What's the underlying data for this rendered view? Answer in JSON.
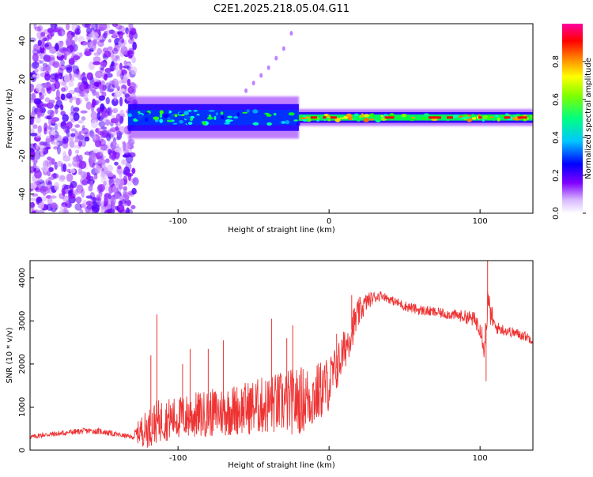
{
  "figure": {
    "title": "C2E1.2025.218.05.04.G11"
  },
  "chart_data": [
    {
      "type": "heatmap",
      "xlabel": "Height of straight line (km)",
      "ylabel": "Frequency (Hz)",
      "xlim": [
        -198,
        135
      ],
      "ylim": [
        -50,
        49
      ],
      "xticks": [
        -100,
        0,
        100
      ],
      "yticks": [
        -40,
        -20,
        0,
        20,
        40
      ],
      "colorbar": {
        "label": "Normalized spectral amplitude",
        "range": [
          0,
          1
        ],
        "ticks": [
          "0.0",
          "0.2",
          "0.4",
          "0.6",
          "0.8"
        ],
        "colormap": [
          "#ffffff",
          "#8000ff",
          "#0000ff",
          "#00ffff",
          "#00ff00",
          "#ffff00",
          "#ff0000",
          "#ff00ff"
        ]
      },
      "bands": [
        {
          "region": "noise",
          "x_range": [
            -198,
            -128
          ],
          "freq_range": [
            -50,
            49
          ],
          "amplitude": 0.05
        },
        {
          "region": "signal",
          "x_range": [
            -133,
            -20
          ],
          "freq_center": 0,
          "half_width_hz": 5,
          "amplitude": 0.45
        },
        {
          "region": "signal",
          "x_range": [
            -20,
            135
          ],
          "freq_center": 0,
          "half_width_hz": 2,
          "amplitude": 0.75
        },
        {
          "region": "arc",
          "x": [
            -55,
            -50,
            -45,
            -40,
            -35,
            -30,
            -25
          ],
          "freq": [
            14,
            18,
            22,
            26,
            31,
            36,
            44
          ],
          "amplitude": 0.1
        }
      ]
    },
    {
      "type": "line",
      "xlabel": "Height of straight line (km)",
      "ylabel": "SNR (10 * v/v)",
      "xlim": [
        -198,
        135
      ],
      "ylim": [
        0,
        4400
      ],
      "xticks": [
        -100,
        0,
        100
      ],
      "yticks": [
        0,
        1000,
        2000,
        3000,
        4000
      ],
      "series": [
        {
          "color": "#ee3333",
          "x": [
            -198,
            -190,
            -180,
            -170,
            -160,
            -150,
            -140,
            -130,
            -125,
            -120,
            -115,
            -110,
            -100,
            -90,
            -80,
            -70,
            -60,
            -50,
            -40,
            -30,
            -20,
            -10,
            0,
            5,
            10,
            15,
            20,
            25,
            30,
            35,
            40,
            50,
            60,
            70,
            80,
            90,
            95,
            100,
            103,
            105,
            110,
            120,
            130,
            135
          ],
          "y": [
            300,
            350,
            380,
            420,
            450,
            430,
            360,
            300,
            450,
            500,
            650,
            700,
            750,
            800,
            850,
            900,
            950,
            1000,
            1050,
            1100,
            1150,
            1250,
            1550,
            1900,
            2300,
            2800,
            3200,
            3450,
            3550,
            3600,
            3500,
            3350,
            3250,
            3200,
            3150,
            3100,
            3050,
            2900,
            2400,
            3400,
            2850,
            2750,
            2650,
            2550
          ],
          "noise_amplitude": [
            50,
            60,
            60,
            70,
            70,
            70,
            60,
            50,
            350,
            450,
            500,
            500,
            500,
            550,
            550,
            600,
            600,
            650,
            700,
            750,
            800,
            750,
            650,
            550,
            500,
            450,
            350,
            200,
            150,
            100,
            100,
            120,
            120,
            120,
            120,
            150,
            180,
            250,
            350,
            400,
            150,
            120,
            120,
            100
          ],
          "spikes": [
            {
              "x": -114,
              "y": 3150
            },
            {
              "x": -118,
              "y": 2200
            },
            {
              "x": -97,
              "y": 2000
            },
            {
              "x": -92,
              "y": 2350
            },
            {
              "x": -80,
              "y": 2350
            },
            {
              "x": -70,
              "y": 2550
            },
            {
              "x": -38,
              "y": 3050
            },
            {
              "x": -28,
              "y": 2600
            },
            {
              "x": -24,
              "y": 2900
            },
            {
              "x": 5,
              "y": 2700
            },
            {
              "x": 15,
              "y": 3600
            },
            {
              "x": 105,
              "y": 4400
            },
            {
              "x": 104,
              "y": 1600
            }
          ]
        }
      ]
    }
  ]
}
